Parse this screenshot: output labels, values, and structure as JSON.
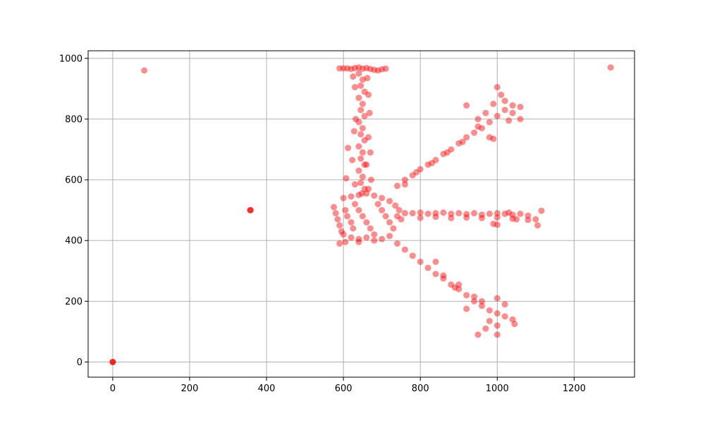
{
  "chart_data": {
    "type": "scatter",
    "title": "",
    "xlabel": "",
    "ylabel": "",
    "xlim": [
      -64,
      1357
    ],
    "ylim": [
      -50,
      1025
    ],
    "x_ticks": [
      0,
      200,
      400,
      600,
      800,
      1000,
      1200
    ],
    "y_ticks": [
      0,
      200,
      400,
      600,
      800,
      1000
    ],
    "x_tick_labels": [
      "0",
      "200",
      "400",
      "600",
      "800",
      "1000",
      "1200"
    ],
    "y_tick_labels": [
      "0",
      "200",
      "400",
      "600",
      "800",
      "1000"
    ],
    "grid": true,
    "point_color": "#ff0000",
    "point_alpha": 0.45,
    "series": [
      {
        "points": [
          [
            0,
            0
          ],
          [
            0,
            0
          ],
          [
            0,
            0
          ],
          [
            82,
            960
          ],
          [
            358,
            500
          ],
          [
            358,
            500
          ],
          [
            358,
            500
          ],
          [
            1295,
            970
          ],
          [
            590,
            967
          ],
          [
            600,
            967
          ],
          [
            610,
            967
          ],
          [
            620,
            965
          ],
          [
            630,
            968
          ],
          [
            640,
            970
          ],
          [
            650,
            966
          ],
          [
            660,
            968
          ],
          [
            670,
            965
          ],
          [
            680,
            962
          ],
          [
            690,
            960
          ],
          [
            700,
            964
          ],
          [
            710,
            966
          ],
          [
            640,
            950
          ],
          [
            650,
            930
          ],
          [
            645,
            910
          ],
          [
            655,
            890
          ],
          [
            640,
            870
          ],
          [
            650,
            850
          ],
          [
            645,
            830
          ],
          [
            655,
            810
          ],
          [
            640,
            790
          ],
          [
            650,
            770
          ],
          [
            645,
            750
          ],
          [
            655,
            730
          ],
          [
            640,
            710
          ],
          [
            650,
            690
          ],
          [
            645,
            670
          ],
          [
            655,
            650
          ],
          [
            640,
            630
          ],
          [
            650,
            610
          ],
          [
            645,
            590
          ],
          [
            655,
            570
          ],
          [
            648,
            555
          ],
          [
            625,
            940
          ],
          [
            630,
            905
          ],
          [
            662,
            935
          ],
          [
            665,
            880
          ],
          [
            668,
            820
          ],
          [
            632,
            800
          ],
          [
            628,
            760
          ],
          [
            665,
            740
          ],
          [
            670,
            690
          ],
          [
            612,
            705
          ],
          [
            623,
            665
          ],
          [
            660,
            650
          ],
          [
            672,
            600
          ],
          [
            607,
            605
          ],
          [
            630,
            585
          ],
          [
            665,
            570
          ],
          [
            575,
            510
          ],
          [
            580,
            490
          ],
          [
            585,
            470
          ],
          [
            590,
            450
          ],
          [
            595,
            430
          ],
          [
            605,
            500
          ],
          [
            610,
            480
          ],
          [
            620,
            460
          ],
          [
            625,
            440
          ],
          [
            630,
            520
          ],
          [
            640,
            500
          ],
          [
            650,
            480
          ],
          [
            660,
            460
          ],
          [
            670,
            440
          ],
          [
            680,
            420
          ],
          [
            690,
            520
          ],
          [
            700,
            500
          ],
          [
            710,
            480
          ],
          [
            720,
            460
          ],
          [
            730,
            440
          ],
          [
            740,
            480
          ],
          [
            745,
            500
          ],
          [
            750,
            470
          ],
          [
            600,
            540
          ],
          [
            620,
            545
          ],
          [
            640,
            550
          ],
          [
            660,
            555
          ],
          [
            680,
            548
          ],
          [
            700,
            540
          ],
          [
            720,
            530
          ],
          [
            735,
            515
          ],
          [
            600,
            420
          ],
          [
            620,
            410
          ],
          [
            640,
            405
          ],
          [
            660,
            410
          ],
          [
            680,
            400
          ],
          [
            700,
            405
          ],
          [
            720,
            415
          ],
          [
            590,
            390
          ],
          [
            605,
            395
          ],
          [
            640,
            395
          ],
          [
            760,
            490
          ],
          [
            780,
            490
          ],
          [
            800,
            492
          ],
          [
            820,
            488
          ],
          [
            840,
            490
          ],
          [
            860,
            492
          ],
          [
            880,
            488
          ],
          [
            900,
            490
          ],
          [
            920,
            487
          ],
          [
            940,
            490
          ],
          [
            960,
            485
          ],
          [
            980,
            488
          ],
          [
            1000,
            490
          ],
          [
            1020,
            488
          ],
          [
            1040,
            485
          ],
          [
            1060,
            488
          ],
          [
            1080,
            482
          ],
          [
            1100,
            470
          ],
          [
            1105,
            450
          ],
          [
            1115,
            498
          ],
          [
            800,
            475
          ],
          [
            840,
            478
          ],
          [
            880,
            474
          ],
          [
            920,
            476
          ],
          [
            960,
            474
          ],
          [
            1000,
            476
          ],
          [
            1040,
            472
          ],
          [
            1080,
            468
          ],
          [
            990,
            455
          ],
          [
            1000,
            452
          ],
          [
            1030,
            492
          ],
          [
            1050,
            470
          ],
          [
            740,
            580
          ],
          [
            760,
            600
          ],
          [
            780,
            615
          ],
          [
            800,
            635
          ],
          [
            820,
            650
          ],
          [
            840,
            665
          ],
          [
            860,
            685
          ],
          [
            880,
            700
          ],
          [
            900,
            720
          ],
          [
            920,
            740
          ],
          [
            940,
            755
          ],
          [
            960,
            770
          ],
          [
            980,
            790
          ],
          [
            1000,
            810
          ],
          [
            1020,
            830
          ],
          [
            1040,
            845
          ],
          [
            1060,
            840
          ],
          [
            950,
            800
          ],
          [
            970,
            820
          ],
          [
            990,
            850
          ],
          [
            1010,
            880
          ],
          [
            1000,
            905
          ],
          [
            1020,
            860
          ],
          [
            1040,
            820
          ],
          [
            1030,
            795
          ],
          [
            1060,
            800
          ],
          [
            980,
            740
          ],
          [
            990,
            735
          ],
          [
            920,
            845
          ],
          [
            760,
            585
          ],
          [
            790,
            625
          ],
          [
            830,
            655
          ],
          [
            870,
            690
          ],
          [
            910,
            725
          ],
          [
            950,
            775
          ],
          [
            740,
            390
          ],
          [
            760,
            370
          ],
          [
            780,
            350
          ],
          [
            800,
            330
          ],
          [
            820,
            310
          ],
          [
            840,
            290
          ],
          [
            860,
            275
          ],
          [
            880,
            255
          ],
          [
            900,
            240
          ],
          [
            920,
            220
          ],
          [
            940,
            200
          ],
          [
            960,
            185
          ],
          [
            980,
            170
          ],
          [
            1000,
            160
          ],
          [
            1020,
            150
          ],
          [
            1040,
            140
          ],
          [
            1045,
            125
          ],
          [
            840,
            330
          ],
          [
            860,
            285
          ],
          [
            900,
            255
          ],
          [
            940,
            215
          ],
          [
            960,
            200
          ],
          [
            980,
            135
          ],
          [
            1000,
            120
          ],
          [
            1000,
            90
          ],
          [
            1020,
            190
          ],
          [
            1000,
            210
          ],
          [
            970,
            110
          ],
          [
            950,
            90
          ],
          [
            920,
            175
          ],
          [
            890,
            245
          ]
        ]
      }
    ]
  }
}
